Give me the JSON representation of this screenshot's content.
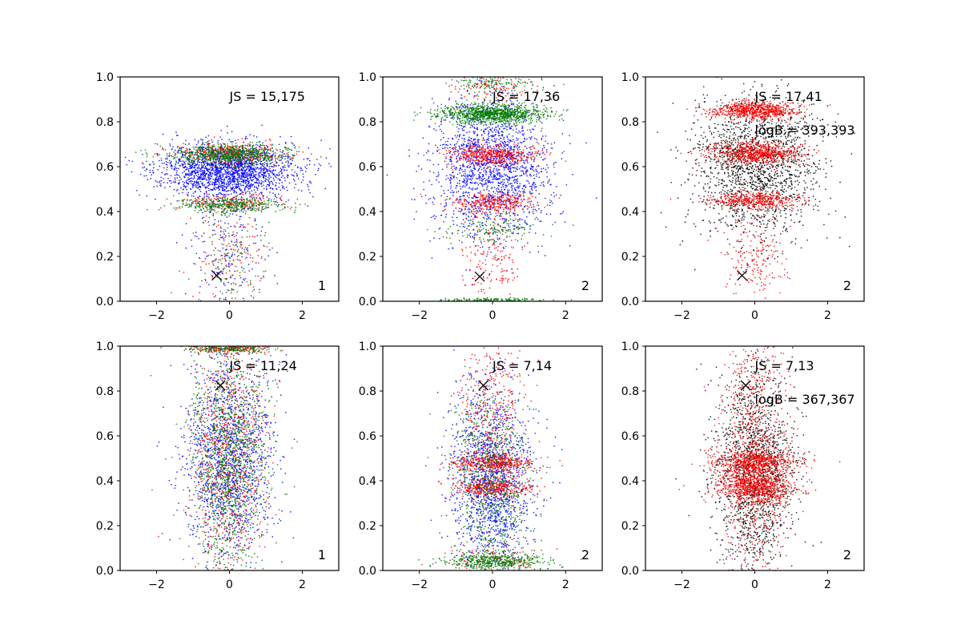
{
  "colors": {
    "blue": "#0000ff",
    "red": "#ff0000",
    "green": "#007a00",
    "black": "#000000",
    "marker": "#000000"
  },
  "chart_data": [
    {
      "type": "scatter",
      "xlim": [
        -3,
        3
      ],
      "ylim": [
        0,
        1
      ],
      "xticks": [
        -2,
        0,
        2
      ],
      "xtick_labels": [
        "−2",
        "0",
        "2"
      ],
      "yticks": [
        0,
        0.2,
        0.4,
        0.6,
        0.8,
        1.0
      ],
      "ytick_labels": [
        "0.0",
        "0.2",
        "0.4",
        "0.6",
        "0.8",
        "1.0"
      ],
      "annotations": [
        "JS = 15,175"
      ],
      "corner_label": "1",
      "marker": {
        "symbol": "x",
        "x": -0.35,
        "y": 0.115
      },
      "series": [
        {
          "name": "blue",
          "color": "blue",
          "n": 2200,
          "clusters": [
            {
              "cy": 0.58,
              "sy": 0.06,
              "sx": 0.95,
              "w": 1
            },
            {
              "cy": 0.25,
              "sy": 0.18,
              "sx": 0.5,
              "w": 0.12
            }
          ]
        },
        {
          "name": "red",
          "color": "red",
          "n": 700,
          "clusters": [
            {
              "cy": 0.66,
              "sy": 0.025,
              "sx": 0.75,
              "w": 0.5
            },
            {
              "cy": 0.44,
              "sy": 0.02,
              "sx": 0.75,
              "w": 0.3
            },
            {
              "cy": 0.2,
              "sy": 0.12,
              "sx": 0.5,
              "w": 0.2
            }
          ]
        },
        {
          "name": "green",
          "color": "green",
          "n": 1200,
          "clusters": [
            {
              "cy": 0.655,
              "sy": 0.022,
              "sx": 0.8,
              "w": 0.6
            },
            {
              "cy": 0.43,
              "sy": 0.018,
              "sx": 0.75,
              "w": 0.3
            },
            {
              "cy": 0.2,
              "sy": 0.12,
              "sx": 0.5,
              "w": 0.1
            }
          ]
        }
      ]
    },
    {
      "type": "scatter",
      "xlim": [
        -3,
        3
      ],
      "ylim": [
        0,
        1
      ],
      "xticks": [
        -2,
        0,
        2
      ],
      "xtick_labels": [
        "−2",
        "0",
        "2"
      ],
      "yticks": [
        0,
        0.2,
        0.4,
        0.6,
        0.8,
        1.0
      ],
      "ytick_labels": [
        "0.0",
        "0.2",
        "0.4",
        "0.6",
        "0.8",
        "1.0"
      ],
      "annotations": [
        "JS = 17,36"
      ],
      "corner_label": "2",
      "marker": {
        "symbol": "x",
        "x": -0.35,
        "y": 0.11
      },
      "series": [
        {
          "name": "blue",
          "color": "blue",
          "n": 1800,
          "clusters": [
            {
              "cy": 0.6,
              "sy": 0.16,
              "sx": 0.8,
              "w": 1
            }
          ]
        },
        {
          "name": "red",
          "color": "red",
          "n": 1100,
          "clusters": [
            {
              "cy": 0.65,
              "sy": 0.025,
              "sx": 0.6,
              "w": 0.45
            },
            {
              "cy": 0.44,
              "sy": 0.02,
              "sx": 0.6,
              "w": 0.3
            },
            {
              "cy": 0.2,
              "sy": 0.1,
              "sx": 0.4,
              "w": 0.15
            },
            {
              "cy": 0.95,
              "sy": 0.03,
              "sx": 0.6,
              "w": 0.1
            }
          ]
        },
        {
          "name": "green",
          "color": "green",
          "n": 1500,
          "clusters": [
            {
              "cy": 0.835,
              "sy": 0.022,
              "sx": 0.75,
              "w": 0.7
            },
            {
              "cy": 0.32,
              "sy": 0.03,
              "sx": 0.6,
              "w": 0.1
            },
            {
              "cy": 0.005,
              "sy": 0.005,
              "sx": 0.7,
              "w": 0.1
            },
            {
              "cy": 0.97,
              "sy": 0.02,
              "sx": 0.6,
              "w": 0.1
            }
          ]
        }
      ]
    },
    {
      "type": "scatter",
      "xlim": [
        -3,
        3
      ],
      "ylim": [
        0,
        1
      ],
      "xticks": [
        -2,
        0,
        2
      ],
      "xtick_labels": [
        "−2",
        "0",
        "2"
      ],
      "yticks": [
        0,
        0.2,
        0.4,
        0.6,
        0.8,
        1.0
      ],
      "ytick_labels": [
        "0.0",
        "0.2",
        "0.4",
        "0.6",
        "0.8",
        "1.0"
      ],
      "annotations": [
        "JS = 17,41",
        "logB = 393,393"
      ],
      "corner_label": "2",
      "marker": {
        "symbol": "x",
        "x": -0.35,
        "y": 0.115
      },
      "series": [
        {
          "name": "black",
          "color": "black",
          "n": 1800,
          "clusters": [
            {
              "cy": 0.6,
              "sy": 0.16,
              "sx": 0.85,
              "w": 1
            }
          ]
        },
        {
          "name": "red",
          "color": "red",
          "n": 2000,
          "clusters": [
            {
              "cy": 0.85,
              "sy": 0.02,
              "sx": 0.6,
              "w": 0.35
            },
            {
              "cy": 0.66,
              "sy": 0.025,
              "sx": 0.6,
              "w": 0.35
            },
            {
              "cy": 0.45,
              "sy": 0.02,
              "sx": 0.6,
              "w": 0.2
            },
            {
              "cy": 0.2,
              "sy": 0.1,
              "sx": 0.4,
              "w": 0.1
            }
          ]
        }
      ]
    },
    {
      "type": "scatter",
      "xlim": [
        -3,
        3
      ],
      "ylim": [
        0,
        1
      ],
      "xticks": [
        -2,
        0,
        2
      ],
      "xtick_labels": [
        "−2",
        "0",
        "2"
      ],
      "yticks": [
        0,
        0.2,
        0.4,
        0.6,
        0.8,
        1.0
      ],
      "ytick_labels": [
        "0.0",
        "0.2",
        "0.4",
        "0.6",
        "0.8",
        "1.0"
      ],
      "annotations": [
        "JS = 11,24"
      ],
      "corner_label": "1",
      "marker": {
        "symbol": "x",
        "x": -0.25,
        "y": 0.825
      },
      "series": [
        {
          "name": "blue",
          "color": "blue",
          "n": 1500,
          "clusters": [
            {
              "cy": 0.5,
              "sy": 0.22,
              "sx": 0.6,
              "w": 1
            }
          ]
        },
        {
          "name": "red",
          "color": "red",
          "n": 1000,
          "clusters": [
            {
              "cy": 0.5,
              "sy": 0.28,
              "sx": 0.5,
              "w": 0.8
            },
            {
              "cy": 0.99,
              "sy": 0.01,
              "sx": 0.6,
              "w": 0.2
            }
          ]
        },
        {
          "name": "green",
          "color": "green",
          "n": 1400,
          "clusters": [
            {
              "cy": 0.5,
              "sy": 0.26,
              "sx": 0.55,
              "w": 0.85
            },
            {
              "cy": 0.99,
              "sy": 0.01,
              "sx": 0.6,
              "w": 0.15
            }
          ]
        }
      ]
    },
    {
      "type": "scatter",
      "xlim": [
        -3,
        3
      ],
      "ylim": [
        0,
        1
      ],
      "xticks": [
        -2,
        0,
        2
      ],
      "xtick_labels": [
        "−2",
        "0",
        "2"
      ],
      "yticks": [
        0,
        0.2,
        0.4,
        0.6,
        0.8,
        1.0
      ],
      "ytick_labels": [
        "0.0",
        "0.2",
        "0.4",
        "0.6",
        "0.8",
        "1.0"
      ],
      "annotations": [
        "JS = 7,14"
      ],
      "corner_label": "2",
      "marker": {
        "symbol": "x",
        "x": -0.25,
        "y": 0.825
      },
      "series": [
        {
          "name": "blue",
          "color": "blue",
          "n": 1500,
          "clusters": [
            {
              "cy": 0.4,
              "sy": 0.2,
              "sx": 0.55,
              "w": 1
            }
          ]
        },
        {
          "name": "red",
          "color": "red",
          "n": 1300,
          "clusters": [
            {
              "cy": 0.48,
              "sy": 0.02,
              "sx": 0.55,
              "w": 0.3
            },
            {
              "cy": 0.37,
              "sy": 0.02,
              "sx": 0.55,
              "w": 0.3
            },
            {
              "cy": 0.7,
              "sy": 0.2,
              "sx": 0.4,
              "w": 0.3
            },
            {
              "cy": 0.05,
              "sy": 0.04,
              "sx": 0.6,
              "w": 0.1
            }
          ]
        },
        {
          "name": "green",
          "color": "green",
          "n": 1200,
          "clusters": [
            {
              "cy": 0.04,
              "sy": 0.02,
              "sx": 0.7,
              "w": 0.4
            },
            {
              "cy": 0.4,
              "sy": 0.2,
              "sx": 0.5,
              "w": 0.6
            }
          ]
        }
      ]
    },
    {
      "type": "scatter",
      "xlim": [
        -3,
        3
      ],
      "ylim": [
        0,
        1
      ],
      "xticks": [
        -2,
        0,
        2
      ],
      "xtick_labels": [
        "−2",
        "0",
        "2"
      ],
      "yticks": [
        0,
        0.2,
        0.4,
        0.6,
        0.8,
        1.0
      ],
      "ytick_labels": [
        "0.0",
        "0.2",
        "0.4",
        "0.6",
        "0.8",
        "1.0"
      ],
      "annotations": [
        "JS = 7,13",
        "logB = 367,367"
      ],
      "corner_label": "2",
      "marker": {
        "symbol": "x",
        "x": -0.25,
        "y": 0.825
      },
      "series": [
        {
          "name": "black",
          "color": "black",
          "n": 1600,
          "clusters": [
            {
              "cy": 0.45,
              "sy": 0.22,
              "sx": 0.55,
              "w": 1
            }
          ]
        },
        {
          "name": "red",
          "color": "red",
          "n": 2200,
          "clusters": [
            {
              "cy": 0.48,
              "sy": 0.03,
              "sx": 0.55,
              "w": 0.3
            },
            {
              "cy": 0.37,
              "sy": 0.03,
              "sx": 0.55,
              "w": 0.3
            },
            {
              "cy": 0.5,
              "sy": 0.28,
              "sx": 0.45,
              "w": 0.4
            }
          ]
        }
      ]
    }
  ]
}
